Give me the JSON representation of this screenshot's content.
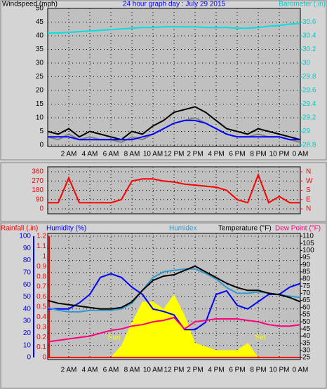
{
  "chart_data": [
    {
      "type": "line",
      "ylabel": "Windspeed (mph)",
      "title": "24 hour graph day : July 29 2015",
      "y2label": "Barometer (.in)",
      "colors": {
        "ylabel": "#000000",
        "title": "#0000ff",
        "y2label": "#00cccc",
        "y": "#000000",
        "y2": "#00cccc"
      },
      "x": [
        0,
        1,
        2,
        3,
        4,
        5,
        6,
        7,
        8,
        9,
        10,
        11,
        12,
        13,
        14,
        15,
        16,
        17,
        18,
        19,
        20,
        21,
        22,
        23,
        24
      ],
      "xlim": [
        0,
        24
      ],
      "xticks": [
        {
          "value": 2,
          "label": "2 AM"
        },
        {
          "value": 4,
          "label": "4 AM"
        },
        {
          "value": 6,
          "label": "6 AM"
        },
        {
          "value": 8,
          "label": "8 AM"
        },
        {
          "value": 10,
          "label": "10 AM"
        },
        {
          "value": 12,
          "label": "12 PM"
        },
        {
          "value": 14,
          "label": "2 PM"
        },
        {
          "value": 16,
          "label": "4 PM"
        },
        {
          "value": 18,
          "label": "6 PM"
        },
        {
          "value": 20,
          "label": "8 PM"
        },
        {
          "value": 22,
          "label": "10 PM"
        },
        {
          "value": 24,
          "label": "0 AM"
        }
      ],
      "ylim": [
        0,
        50
      ],
      "yticks": [
        0,
        5,
        10,
        15,
        20,
        25,
        30,
        35,
        40,
        45,
        50
      ],
      "y2lim": [
        28.8,
        30.8
      ],
      "y2ticks": [
        28.8,
        29,
        29.2,
        29.4,
        29.6,
        29.8,
        30,
        30.2,
        30.4,
        30.6
      ],
      "grid": true,
      "series": [
        {
          "color": "#000000",
          "values": [
            5,
            4,
            6,
            3,
            5,
            4,
            3,
            2,
            5,
            4,
            7,
            9,
            12,
            13,
            14,
            12,
            9,
            6,
            5,
            4,
            6,
            5,
            4,
            3,
            2
          ]
        },
        {
          "color": "#808080",
          "values": [
            3,
            2,
            4,
            2,
            3,
            2,
            2,
            1,
            3,
            2,
            4,
            6,
            8,
            9,
            10,
            8,
            6,
            4,
            3,
            3,
            4,
            3,
            3,
            2,
            1
          ]
        },
        {
          "color": "#0000ff",
          "values": [
            3,
            3,
            3,
            2,
            2,
            2,
            2,
            2,
            2,
            3,
            4,
            6,
            8,
            9,
            9,
            8,
            6,
            4,
            3,
            3,
            3,
            3,
            3,
            2,
            2
          ]
        },
        {
          "color": "#00e0e0",
          "axis": "y2",
          "values": [
            30.44,
            30.44,
            30.45,
            30.46,
            30.47,
            30.48,
            30.49,
            30.5,
            30.51,
            30.52,
            30.52,
            30.53,
            30.53,
            30.53,
            30.53,
            30.52,
            30.52,
            30.52,
            30.51,
            30.51,
            30.52,
            30.54,
            30.55,
            30.57,
            30.58
          ]
        }
      ]
    },
    {
      "type": "line",
      "colors": {
        "y": "#ff0000",
        "y2": "#ff0000"
      },
      "x": [
        0,
        1,
        2,
        3,
        4,
        5,
        6,
        7,
        8,
        9,
        10,
        11,
        12,
        13,
        14,
        15,
        16,
        17,
        18,
        19,
        20,
        21,
        22,
        23,
        24
      ],
      "xlim": [
        0,
        24
      ],
      "xticks": [
        2,
        4,
        6,
        8,
        10,
        12,
        14,
        16,
        18,
        20,
        22
      ],
      "ylim": [
        0,
        360
      ],
      "yticks": [
        0,
        90,
        180,
        270,
        360
      ],
      "y2lim": [
        0,
        360
      ],
      "y2ticks": [
        {
          "value": 0,
          "label": "N"
        },
        {
          "value": 90,
          "label": "E"
        },
        {
          "value": 180,
          "label": "S"
        },
        {
          "value": 270,
          "label": "W"
        },
        {
          "value": 360,
          "label": "N"
        }
      ],
      "grid": true,
      "series": [
        {
          "color": "#ff0000",
          "values": [
            60,
            60,
            300,
            60,
            60,
            60,
            60,
            90,
            270,
            290,
            290,
            270,
            260,
            240,
            230,
            220,
            210,
            180,
            90,
            60,
            330,
            60,
            120,
            60,
            60
          ]
        }
      ]
    },
    {
      "type": "line",
      "colors": {
        "y": "#0000ff",
        "y2": "#000000",
        "y3": "#ff0000"
      },
      "x": [
        0,
        1,
        2,
        3,
        4,
        5,
        6,
        7,
        8,
        9,
        10,
        11,
        12,
        13,
        14,
        15,
        16,
        17,
        18,
        19,
        20,
        21,
        22,
        23,
        24
      ],
      "xlim": [
        0,
        24
      ],
      "xticks": [
        {
          "value": 2,
          "label": "2 AM"
        },
        {
          "value": 4,
          "label": "4 AM"
        },
        {
          "value": 6,
          "label": "6 AM"
        },
        {
          "value": 8,
          "label": "8 AM"
        },
        {
          "value": 10,
          "label": "10 AM"
        },
        {
          "value": 12,
          "label": "12 PM"
        },
        {
          "value": 14,
          "label": "2 PM"
        },
        {
          "value": 16,
          "label": "4 PM"
        },
        {
          "value": 18,
          "label": "6 PM"
        },
        {
          "value": 20,
          "label": "8 PM"
        },
        {
          "value": 22,
          "label": "10 PM"
        },
        {
          "value": 24,
          "label": "0 AM"
        }
      ],
      "ylim": [
        0,
        100
      ],
      "yticks": [
        0,
        10,
        20,
        30,
        40,
        50,
        60,
        70,
        80,
        90,
        100
      ],
      "y3lim": [
        0,
        1.2
      ],
      "y3ticks": [
        0,
        0.1,
        0.2,
        0.3,
        0.4,
        0.5,
        0.6,
        0.7,
        0.8,
        0.9,
        1,
        1.1,
        1.2
      ],
      "y2lim": [
        25,
        110
      ],
      "y2ticks": [
        25,
        30,
        35,
        40,
        45,
        50,
        55,
        60,
        65,
        70,
        75,
        80,
        85,
        90,
        95,
        100,
        105,
        110
      ],
      "grid": true,
      "annotations": [
        "Sun",
        "Set"
      ],
      "series": [
        {
          "color": "#ffff00",
          "fill": true,
          "values": [
            0,
            0,
            0,
            0,
            0,
            0,
            0,
            10,
            29,
            46,
            46,
            40,
            52,
            35,
            12,
            9,
            6,
            6,
            6,
            12,
            0,
            0,
            0,
            0,
            0
          ]
        },
        {
          "name": "Rainfall (.in)",
          "color": "#ff0000",
          "axis": "y3",
          "values": [
            0,
            0,
            0,
            0,
            0,
            0,
            0,
            0,
            0,
            0,
            0,
            0,
            0,
            0,
            0,
            0,
            0,
            0,
            0,
            0,
            0,
            0,
            0,
            0,
            0
          ]
        },
        {
          "name": "Humidity (%)",
          "color": "#0000ff",
          "values": [
            40,
            40,
            40,
            45,
            52,
            66,
            69,
            66,
            58,
            52,
            40,
            38,
            35,
            23,
            23,
            29,
            52,
            55,
            43,
            40,
            46,
            52,
            52,
            58,
            61
          ]
        },
        {
          "name": "Humidex",
          "color": "#3399cc",
          "axis": "y2",
          "values": [
            60,
            58,
            57,
            57,
            58,
            58,
            58,
            59,
            63,
            72,
            81,
            85,
            86,
            87,
            87,
            84,
            80,
            74,
            70,
            70,
            71,
            70,
            69,
            68,
            67
          ]
        },
        {
          "name": "Dew Point (°F)",
          "color": "#ff0080",
          "axis": "y2",
          "values": [
            36,
            37,
            38,
            39,
            40,
            42,
            44,
            45,
            47,
            48,
            50,
            51,
            53,
            45,
            50,
            51,
            52,
            52,
            52,
            51,
            50,
            48,
            47,
            47,
            48
          ]
        },
        {
          "name": "Temperature (°F)",
          "color": "#000000",
          "axis": "y2",
          "values": [
            65,
            63,
            62,
            61,
            60,
            59,
            59,
            60,
            64,
            72,
            79,
            82,
            83,
            86,
            89,
            85,
            81,
            77,
            74,
            72,
            72,
            70,
            69,
            67,
            64
          ]
        }
      ]
    }
  ]
}
